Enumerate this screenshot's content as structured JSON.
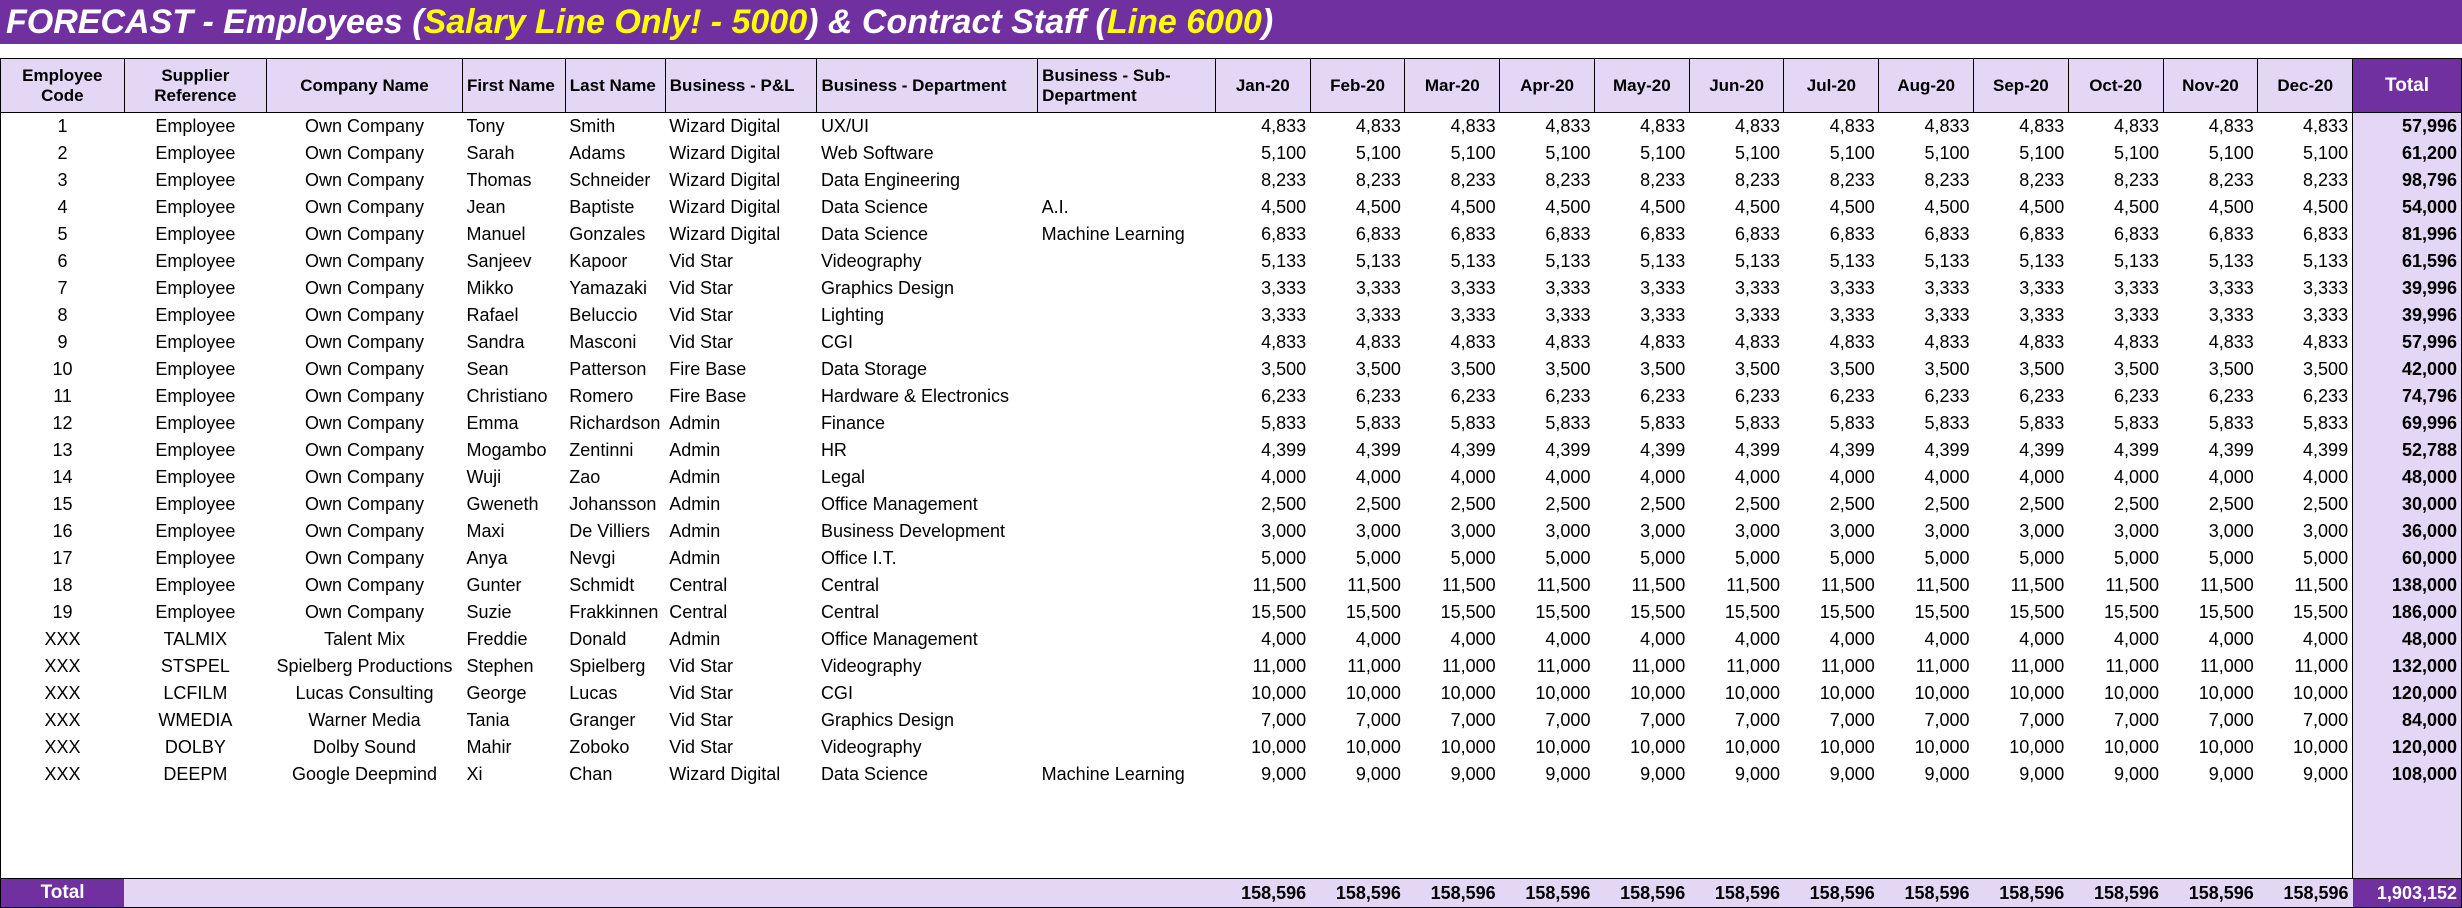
{
  "title": {
    "part1": "FORECAST - Employees (",
    "highlight1": "Salary Line Only! - 5000",
    "part2": ") & Contract Staff (",
    "highlight2": "Line 6000",
    "part3": ")"
  },
  "headers": [
    "Employee Code",
    "Supplier Reference",
    "Company Name",
    "First Name",
    "Last Name",
    "Business - P&L",
    "Business - Department",
    "Business - Sub-Department",
    "Jan-20",
    "Feb-20",
    "Mar-20",
    "Apr-20",
    "May-20",
    "Jun-20",
    "Jul-20",
    "Aug-20",
    "Sep-20",
    "Oct-20",
    "Nov-20",
    "Dec-20",
    "Total"
  ],
  "rows": [
    [
      "1",
      "Employee",
      "Own Company",
      "Tony",
      "Smith",
      "Wizard Digital",
      "UX/UI",
      "",
      "4,833",
      "57,996"
    ],
    [
      "2",
      "Employee",
      "Own Company",
      "Sarah",
      "Adams",
      "Wizard Digital",
      "Web Software",
      "",
      "5,100",
      "61,200"
    ],
    [
      "3",
      "Employee",
      "Own Company",
      "Thomas",
      "Schneider",
      "Wizard Digital",
      "Data Engineering",
      "",
      "8,233",
      "98,796"
    ],
    [
      "4",
      "Employee",
      "Own Company",
      "Jean",
      "Baptiste",
      "Wizard Digital",
      "Data Science",
      "A.I.",
      "4,500",
      "54,000"
    ],
    [
      "5",
      "Employee",
      "Own Company",
      "Manuel",
      "Gonzales",
      "Wizard Digital",
      "Data Science",
      "Machine Learning",
      "6,833",
      "81,996"
    ],
    [
      "6",
      "Employee",
      "Own Company",
      "Sanjeev",
      "Kapoor",
      "Vid Star",
      "Videography",
      "",
      "5,133",
      "61,596"
    ],
    [
      "7",
      "Employee",
      "Own Company",
      "Mikko",
      "Yamazaki",
      "Vid Star",
      "Graphics Design",
      "",
      "3,333",
      "39,996"
    ],
    [
      "8",
      "Employee",
      "Own Company",
      "Rafael",
      "Beluccio",
      "Vid Star",
      "Lighting",
      "",
      "3,333",
      "39,996"
    ],
    [
      "9",
      "Employee",
      "Own Company",
      "Sandra",
      "Masconi",
      "Vid Star",
      "CGI",
      "",
      "4,833",
      "57,996"
    ],
    [
      "10",
      "Employee",
      "Own Company",
      "Sean",
      "Patterson",
      "Fire Base",
      "Data Storage",
      "",
      "3,500",
      "42,000"
    ],
    [
      "11",
      "Employee",
      "Own Company",
      "Christiano",
      "Romero",
      "Fire Base",
      "Hardware & Electronics",
      "",
      "6,233",
      "74,796"
    ],
    [
      "12",
      "Employee",
      "Own Company",
      "Emma",
      "Richardson",
      "Admin",
      "Finance",
      "",
      "5,833",
      "69,996"
    ],
    [
      "13",
      "Employee",
      "Own Company",
      "Mogambo",
      "Zentinni",
      "Admin",
      "HR",
      "",
      "4,399",
      "52,788"
    ],
    [
      "14",
      "Employee",
      "Own Company",
      "Wuji",
      "Zao",
      "Admin",
      "Legal",
      "",
      "4,000",
      "48,000"
    ],
    [
      "15",
      "Employee",
      "Own Company",
      "Gweneth",
      "Johansson",
      "Admin",
      "Office Management",
      "",
      "2,500",
      "30,000"
    ],
    [
      "16",
      "Employee",
      "Own Company",
      "Maxi",
      "De Villiers",
      "Admin",
      "Business Development",
      "",
      "3,000",
      "36,000"
    ],
    [
      "17",
      "Employee",
      "Own Company",
      "Anya",
      "Nevgi",
      "Admin",
      "Office I.T.",
      "",
      "5,000",
      "60,000"
    ],
    [
      "18",
      "Employee",
      "Own Company",
      "Gunter",
      "Schmidt",
      "Central",
      "Central",
      "",
      "11,500",
      "138,000"
    ],
    [
      "19",
      "Employee",
      "Own Company",
      "Suzie",
      "Frakkinnen",
      "Central",
      "Central",
      "",
      "15,500",
      "186,000"
    ],
    [
      "XXX",
      "TALMIX",
      "Talent Mix",
      "Freddie",
      "Donald",
      "Admin",
      "Office Management",
      "",
      "4,000",
      "48,000"
    ],
    [
      "XXX",
      "STSPEL",
      "Spielberg Productions",
      "Stephen",
      "Spielberg",
      "Vid Star",
      "Videography",
      "",
      "11,000",
      "132,000"
    ],
    [
      "XXX",
      "LCFILM",
      "Lucas Consulting",
      "George",
      "Lucas",
      "Vid Star",
      "CGI",
      "",
      "10,000",
      "120,000"
    ],
    [
      "XXX",
      "WMEDIA",
      "Warner Media",
      "Tania",
      "Granger",
      "Vid Star",
      "Graphics Design",
      "",
      "7,000",
      "84,000"
    ],
    [
      "XXX",
      "DOLBY",
      "Dolby Sound",
      "Mahir",
      "Zoboko",
      "Vid Star",
      "Videography",
      "",
      "10,000",
      "120,000"
    ],
    [
      "XXX",
      "DEEPM",
      "Google Deepmind",
      "Xi",
      "Chan",
      "Wizard Digital",
      "Data Science",
      "Machine Learning",
      "9,000",
      "108,000"
    ]
  ],
  "total_row": {
    "label": "Total",
    "monthly": [
      "158,596",
      "158,596",
      "158,596",
      "158,596",
      "158,596",
      "158,596",
      "158,596",
      "158,596",
      "158,596",
      "158,596",
      "158,596",
      "158,596"
    ],
    "grand_total": "1,903,152"
  }
}
